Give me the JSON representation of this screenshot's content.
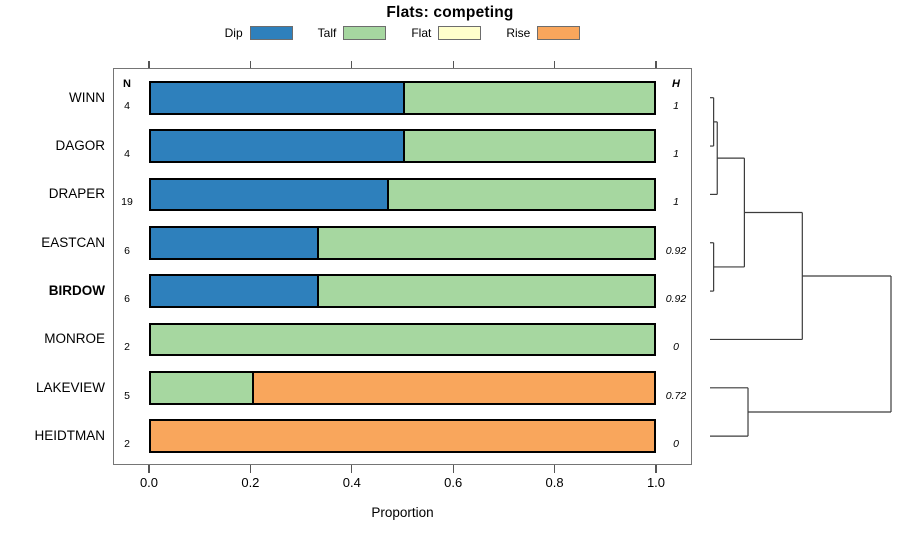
{
  "chart_data": {
    "type": "stacked_bar_horizontal",
    "title": "Flats: competing",
    "xlabel": "Proportion",
    "x_ticks": [
      "0.0",
      "0.2",
      "0.4",
      "0.6",
      "0.8",
      "1.0"
    ],
    "xlim": [
      0,
      1
    ],
    "grid": false,
    "legend_position": "top-center",
    "legend": [
      {
        "label": "Dip",
        "color": "#2e80bc"
      },
      {
        "label": "Talf",
        "color": "#a6d7a0"
      },
      {
        "label": "Flat",
        "color": "#ffffcc"
      },
      {
        "label": "Rise",
        "color": "#f9a65c"
      }
    ],
    "columns": {
      "n_header": "N",
      "h_header": "H"
    },
    "rows": [
      {
        "name": "WINN",
        "bold": false,
        "n": "4",
        "h": "1",
        "segments": [
          {
            "cat": "Dip",
            "value": 0.5
          },
          {
            "cat": "Talf",
            "value": 0.5
          }
        ]
      },
      {
        "name": "DAGOR",
        "bold": false,
        "n": "4",
        "h": "1",
        "segments": [
          {
            "cat": "Dip",
            "value": 0.5
          },
          {
            "cat": "Talf",
            "value": 0.5
          }
        ]
      },
      {
        "name": "DRAPER",
        "bold": false,
        "n": "19",
        "h": "1",
        "segments": [
          {
            "cat": "Dip",
            "value": 0.47
          },
          {
            "cat": "Talf",
            "value": 0.53
          }
        ]
      },
      {
        "name": "EASTCAN",
        "bold": false,
        "n": "6",
        "h": "0.92",
        "segments": [
          {
            "cat": "Dip",
            "value": 0.33
          },
          {
            "cat": "Talf",
            "value": 0.67
          }
        ]
      },
      {
        "name": "BIRDOW",
        "bold": true,
        "n": "6",
        "h": "0.92",
        "segments": [
          {
            "cat": "Dip",
            "value": 0.33
          },
          {
            "cat": "Talf",
            "value": 0.67
          }
        ]
      },
      {
        "name": "MONROE",
        "bold": false,
        "n": "2",
        "h": "0",
        "segments": [
          {
            "cat": "Talf",
            "value": 1.0
          }
        ]
      },
      {
        "name": "LAKEVIEW",
        "bold": false,
        "n": "5",
        "h": "0.72",
        "segments": [
          {
            "cat": "Talf",
            "value": 0.2
          },
          {
            "cat": "Rise",
            "value": 0.8
          }
        ]
      },
      {
        "name": "HEIDTMAN",
        "bold": false,
        "n": "2",
        "h": "0",
        "segments": [
          {
            "cat": "Rise",
            "value": 1.0
          }
        ]
      }
    ],
    "dendrogram": {
      "leaves": [
        "WINN",
        "DAGOR",
        "DRAPER",
        "EASTCAN",
        "BIRDOW",
        "MONROE",
        "LAKEVIEW",
        "HEIDTMAN"
      ],
      "merges": [
        {
          "a": "WINN",
          "b": "DAGOR",
          "height": 0.02
        },
        {
          "a": "@0",
          "b": "DRAPER",
          "height": 0.04
        },
        {
          "a": "EASTCAN",
          "b": "BIRDOW",
          "height": 0.02
        },
        {
          "a": "@1",
          "b": "@2",
          "height": 0.19
        },
        {
          "a": "@3",
          "b": "MONROE",
          "height": 0.51
        },
        {
          "a": "LAKEVIEW",
          "b": "HEIDTMAN",
          "height": 0.21
        },
        {
          "a": "@4",
          "b": "@5",
          "height": 1.0
        }
      ]
    }
  }
}
